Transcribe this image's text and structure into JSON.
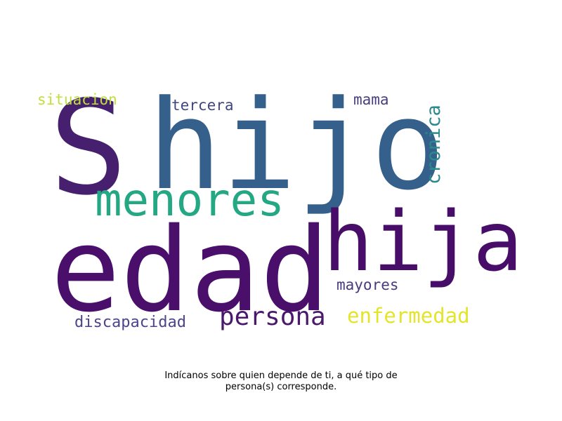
{
  "words": [
    {
      "text": "S",
      "color": "#46206f"
    },
    {
      "text": "hijo",
      "color": "#34608b"
    },
    {
      "text": "edad",
      "color": "#490f6b"
    },
    {
      "text": "hija",
      "color": "#470d68"
    },
    {
      "text": "menores",
      "color": "#24a884"
    },
    {
      "text": "persona",
      "color": "#4a196d"
    },
    {
      "text": "enfermedad",
      "color": "#e4e42a"
    },
    {
      "text": "discapacidad",
      "color": "#4d458a"
    },
    {
      "text": "mayores",
      "color": "#4b3a7f"
    },
    {
      "text": "situacion",
      "color": "#bfe03a"
    },
    {
      "text": "tercera",
      "color": "#40467e"
    },
    {
      "text": "mama",
      "color": "#47407f"
    },
    {
      "text": "cronica",
      "color": "#2a8a8c"
    }
  ],
  "caption": {
    "line1": "Indícanos sobre quien depende de ti, a qué tipo de",
    "line2": "persona(s) corresponde."
  }
}
